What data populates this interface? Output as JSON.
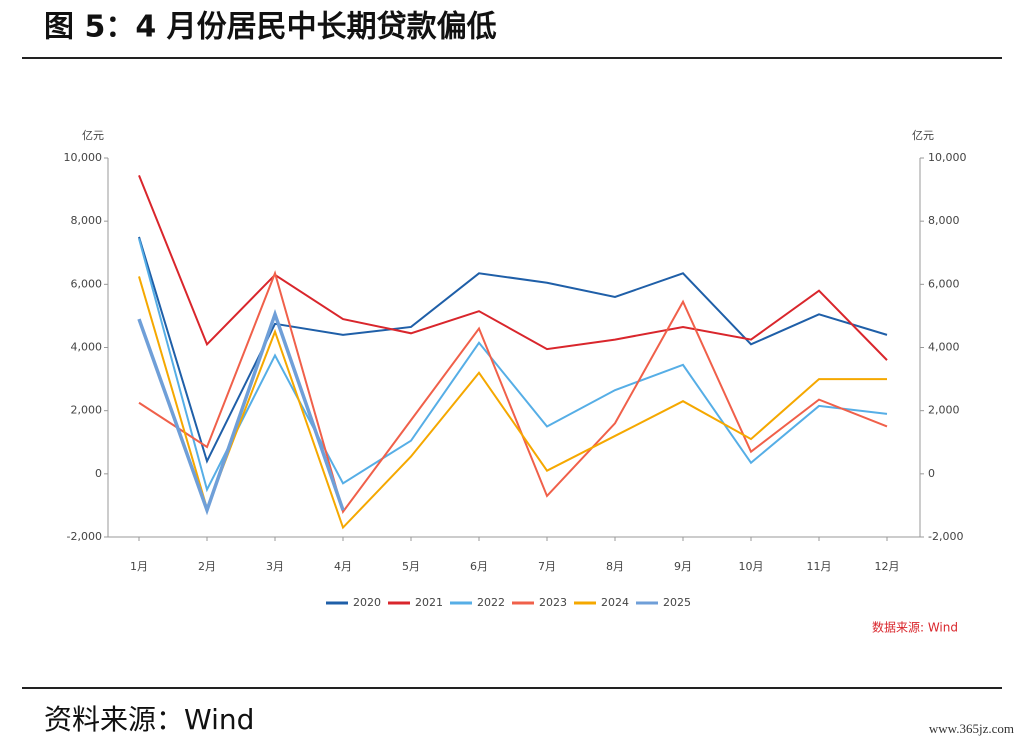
{
  "chart_data": {
    "type": "line",
    "title": "图 5：4 月份居民中长期贷款偏低",
    "y_axis_label": "亿元",
    "y2_axis_label": "亿元",
    "source_note": "数据来源: Wind",
    "footer": "资料来源：Wind",
    "watermark": "www.365jz.com",
    "categories": [
      "1月",
      "2月",
      "3月",
      "4月",
      "5月",
      "6月",
      "7月",
      "8月",
      "9月",
      "10月",
      "11月",
      "12月"
    ],
    "series": [
      {
        "name": "2020",
        "color": "#1f5fa8",
        "values": [
          7500,
          400,
          4750,
          4400,
          4650,
          6350,
          6050,
          5600,
          6350,
          4100,
          5050,
          4400
        ]
      },
      {
        "name": "2021",
        "color": "#d9262c",
        "values": [
          9450,
          4100,
          6300,
          4900,
          4450,
          5150,
          3950,
          4250,
          4650,
          4250,
          5800,
          3600
        ]
      },
      {
        "name": "2022",
        "color": "#56aee6",
        "values": [
          7450,
          -500,
          3750,
          -300,
          1050,
          4150,
          1500,
          2650,
          3450,
          350,
          2150,
          1900
        ]
      },
      {
        "name": "2023",
        "color": "#f0604a",
        "values": [
          2250,
          850,
          6350,
          -1200,
          1700,
          4600,
          -700,
          1600,
          5450,
          700,
          2350,
          1500
        ]
      },
      {
        "name": "2024",
        "color": "#f5a800",
        "values": [
          6250,
          -1100,
          4500,
          -1700,
          550,
          3200,
          100,
          1200,
          2300,
          1100,
          3000,
          3000
        ]
      },
      {
        "name": "2025",
        "color": "#6f9fd8",
        "values": [
          4900,
          -1150,
          5050,
          -1150,
          null,
          null,
          null,
          null,
          null,
          null,
          null,
          null
        ]
      }
    ],
    "ylim": [
      -2000,
      10000
    ],
    "yticks": [
      {
        "value": -2000,
        "label": "-2,000"
      },
      0,
      {
        "value": 2000,
        "label": "2,000"
      },
      {
        "value": 4000,
        "label": "4,000"
      },
      {
        "value": 6000,
        "label": "6,000"
      },
      {
        "value": 8000,
        "label": "8,000"
      },
      {
        "value": 10000,
        "label": "10,000"
      }
    ],
    "y2lim": [
      -2000,
      10000
    ],
    "y2ticks": [
      {
        "value": -2000,
        "label": "-2,000"
      },
      0,
      {
        "value": 2000,
        "label": "2,000"
      },
      {
        "value": 4000,
        "label": "4,000"
      },
      {
        "value": 6000,
        "label": "6,000"
      },
      {
        "value": 8000,
        "label": "8,000"
      },
      {
        "value": 10000,
        "label": "10,000"
      }
    ],
    "grid": false,
    "legend": "bottom"
  }
}
